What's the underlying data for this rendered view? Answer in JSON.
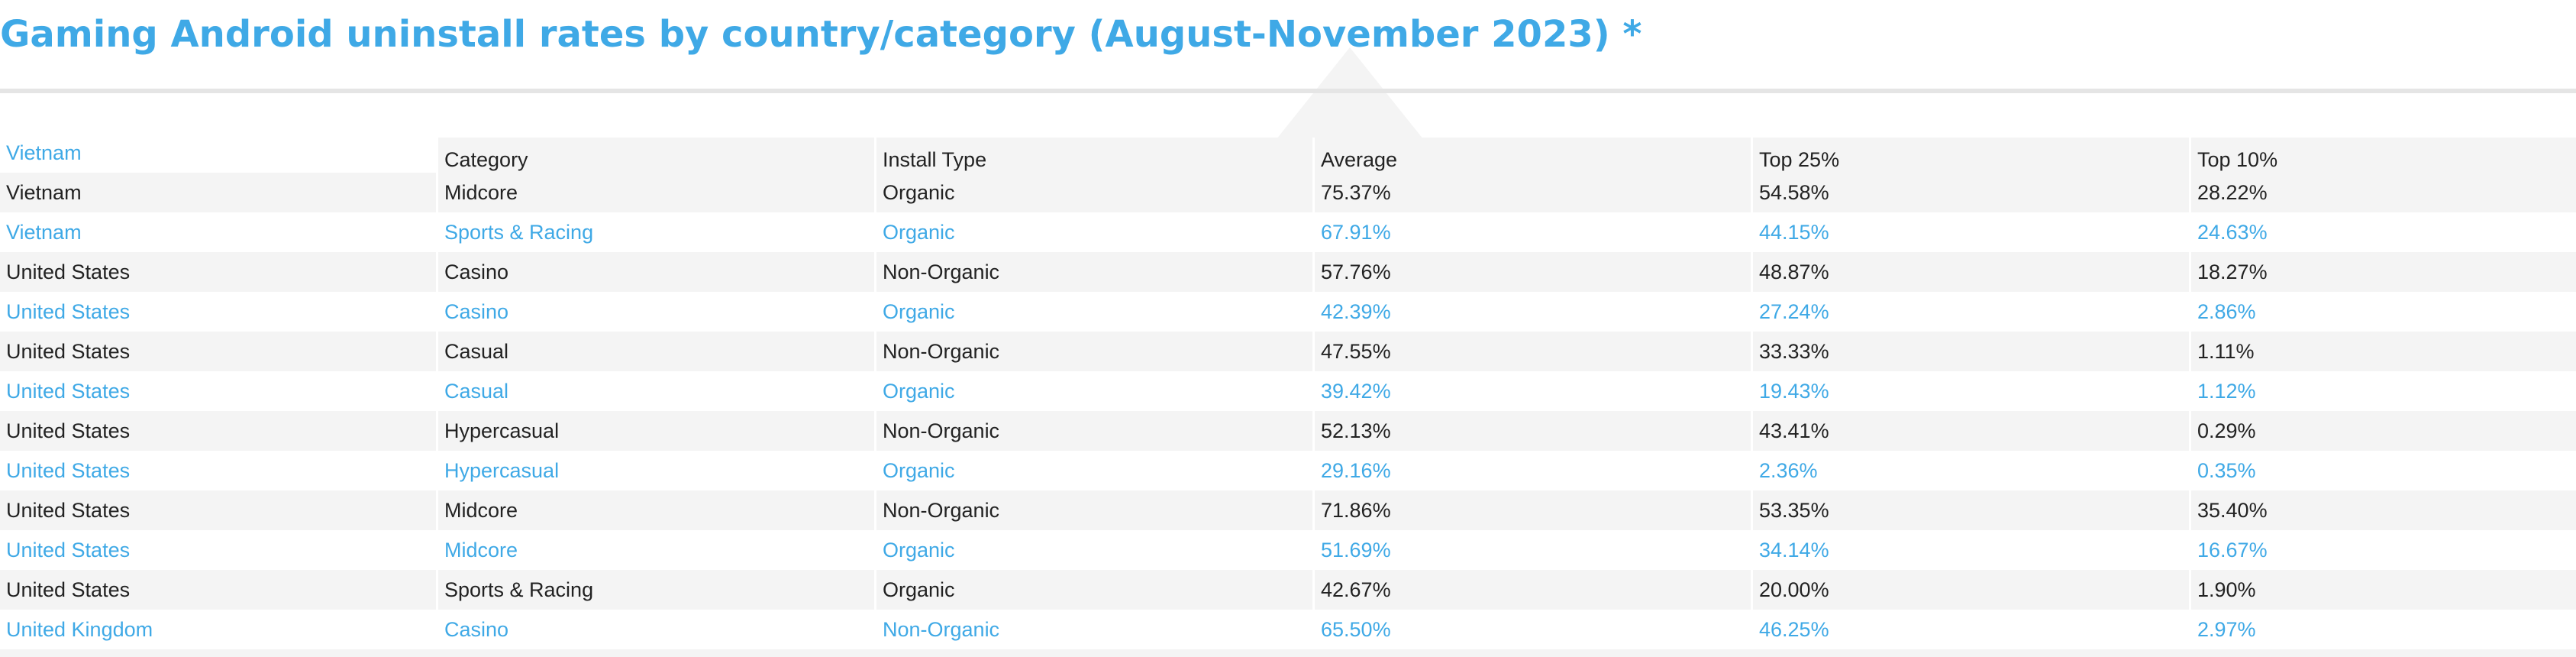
{
  "title": "Gaming Android uninstall rates by country/category (August-November 2023) *",
  "table": {
    "columns": [
      "Vietnam",
      "Category",
      "Install Type",
      "Average",
      "Top 25%",
      "Top 10%"
    ],
    "rows": [
      [
        "Vietnam",
        "Midcore",
        "Organic",
        "75.37%",
        "54.58%",
        "28.22%"
      ],
      [
        "Vietnam",
        "Sports & Racing",
        "Organic",
        "67.91%",
        "44.15%",
        "24.63%"
      ],
      [
        "United States",
        "Casino",
        "Non-Organic",
        "57.76%",
        "48.87%",
        "18.27%"
      ],
      [
        "United States",
        "Casino",
        "Organic",
        "42.39%",
        "27.24%",
        "2.86%"
      ],
      [
        "United States",
        "Casual",
        "Non-Organic",
        "47.55%",
        "33.33%",
        "1.11%"
      ],
      [
        "United States",
        "Casual",
        "Organic",
        "39.42%",
        "19.43%",
        "1.12%"
      ],
      [
        "United States",
        "Hypercasual",
        "Non-Organic",
        "52.13%",
        "43.41%",
        "0.29%"
      ],
      [
        "United States",
        "Hypercasual",
        "Organic",
        "29.16%",
        "2.36%",
        "0.35%"
      ],
      [
        "United States",
        "Midcore",
        "Non-Organic",
        "71.86%",
        "53.35%",
        "35.40%"
      ],
      [
        "United States",
        "Midcore",
        "Organic",
        "51.69%",
        "34.14%",
        "16.67%"
      ],
      [
        "United States",
        "Sports & Racing",
        "Organic",
        "42.67%",
        "20.00%",
        "1.90%"
      ],
      [
        "United Kingdom",
        "Casino",
        "Non-Organic",
        "65.50%",
        "46.25%",
        "2.97%"
      ]
    ]
  },
  "colors": {
    "accent": "#3fa9e6",
    "text": "#222222",
    "stripe": "#f4f4f4"
  }
}
